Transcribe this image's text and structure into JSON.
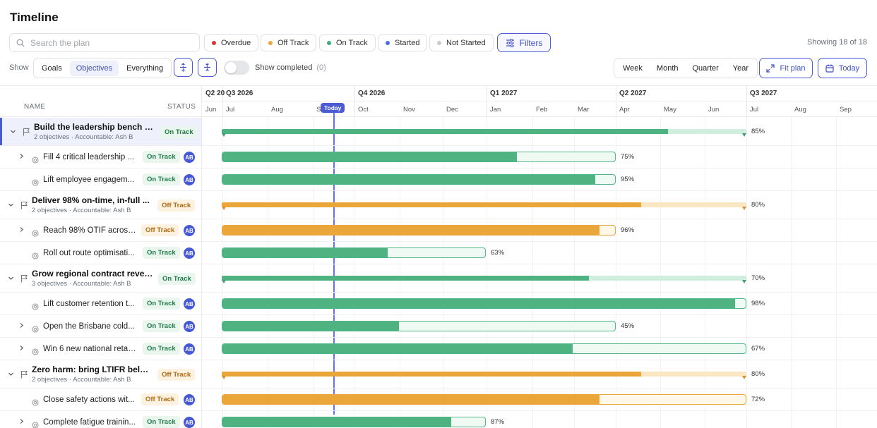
{
  "header": {
    "title": "Timeline"
  },
  "search": {
    "placeholder": "Search the plan"
  },
  "status_filters": [
    {
      "label": "Overdue",
      "color": "#d9363e"
    },
    {
      "label": "Off Track",
      "color": "#e9a73d"
    },
    {
      "label": "On Track",
      "color": "#3fae78"
    },
    {
      "label": "Started",
      "color": "#4a6fe0"
    },
    {
      "label": "Not Started",
      "color": "#c5c9d2"
    }
  ],
  "filters_label": "Filters",
  "showing": "Showing 18 of 18",
  "show": {
    "label": "Show",
    "options": [
      "Goals",
      "Objectives",
      "Everything"
    ],
    "active": "Objectives",
    "show_completed_label": "Show completed",
    "completed_count": "(0)"
  },
  "zoom_options": [
    "Week",
    "Month",
    "Quarter",
    "Year"
  ],
  "fit_plan_label": "Fit plan",
  "today_label": "Today",
  "columns": {
    "name": "NAME",
    "status": "STATUS"
  },
  "quarters": [
    "Q2 20",
    "Q3 2026",
    "Q4 2026",
    "Q1 2027",
    "Q2 2027",
    "Q3 2027"
  ],
  "months": [
    "Jun",
    "Jul",
    "Aug",
    "Se",
    "Oct",
    "Nov",
    "Dec",
    "Jan",
    "Feb",
    "Mar",
    "Apr",
    "May",
    "Jun",
    "Jul",
    "Aug",
    "Sep"
  ],
  "today_marker": "Today",
  "rows": [
    {
      "kind": "goal",
      "title": "Build the leadership bench fo...",
      "sub": "2 objectives · Accountable: Ash B",
      "status": "On Track",
      "tone": "g",
      "progress": 85,
      "pct": "85%"
    },
    {
      "kind": "obj",
      "title": "Fill 4 critical leadership ...",
      "status": "On Track",
      "tone": "g",
      "avatar": "AB",
      "progress": 75,
      "pct": "75%",
      "expandable": true
    },
    {
      "kind": "obj",
      "title": "Lift employee engagem...",
      "status": "On Track",
      "tone": "g",
      "avatar": "AB",
      "progress": 95,
      "pct": "95%",
      "expandable": false
    },
    {
      "kind": "goal",
      "title": "Deliver 98% on-time, in-full ...",
      "sub": "2 objectives · Accountable: Ash B",
      "status": "Off Track",
      "tone": "o",
      "progress": 80,
      "pct": "80%"
    },
    {
      "kind": "obj",
      "title": "Reach 98% OTIF across...",
      "status": "Off Track",
      "tone": "o",
      "avatar": "AB",
      "progress": 96,
      "pct": "96%",
      "expandable": true
    },
    {
      "kind": "obj",
      "title": "Roll out route optimisati...",
      "status": "On Track",
      "tone": "g",
      "avatar": "AB",
      "progress": 63,
      "pct": "63%",
      "expandable": false
    },
    {
      "kind": "goal",
      "title": "Grow regional contract reven...",
      "sub": "3 objectives · Accountable: Ash B",
      "status": "On Track",
      "tone": "g",
      "progress": 70,
      "pct": "70%"
    },
    {
      "kind": "obj",
      "title": "Lift customer retention t...",
      "status": "On Track",
      "tone": "g",
      "avatar": "AB",
      "progress": 98,
      "pct": "98%",
      "expandable": false
    },
    {
      "kind": "obj",
      "title": "Open the Brisbane cold...",
      "status": "On Track",
      "tone": "g",
      "avatar": "AB",
      "progress": 45,
      "pct": "45%",
      "expandable": true
    },
    {
      "kind": "obj",
      "title": "Win 6 new national retai...",
      "status": "On Track",
      "tone": "g",
      "avatar": "AB",
      "progress": 67,
      "pct": "67%",
      "expandable": true
    },
    {
      "kind": "goal",
      "title": "Zero harm: bring LTIFR below...",
      "sub": "2 objectives · Accountable: Ash B",
      "status": "Off Track",
      "tone": "o",
      "progress": 80,
      "pct": "80%"
    },
    {
      "kind": "obj",
      "title": "Close safety actions wit...",
      "status": "Off Track",
      "tone": "o",
      "avatar": "AB",
      "progress": 72,
      "pct": "72%",
      "expandable": false
    },
    {
      "kind": "obj",
      "title": "Complete fatigue trainin...",
      "status": "On Track",
      "tone": "g",
      "avatar": "AB",
      "progress": 87,
      "pct": "87%",
      "expandable": true
    }
  ]
}
